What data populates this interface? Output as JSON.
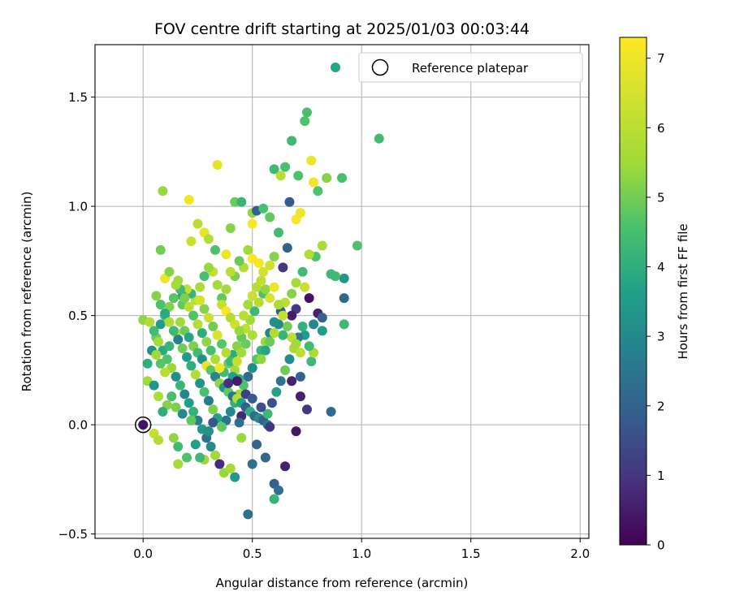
{
  "chart_data": {
    "type": "scatter",
    "title": "FOV centre drift starting at 2025/01/03 00:03:44",
    "xlabel": "Angular distance from reference (arcmin)",
    "ylabel": "Rotation from reference (arcmin)",
    "xlim": [
      -0.22,
      2.04
    ],
    "ylim": [
      -0.52,
      1.74
    ],
    "xticks": [
      0.0,
      0.5,
      1.0,
      1.5,
      2.0
    ],
    "xtick_labels": [
      "0.0",
      "0.5",
      "1.0",
      "1.5",
      "2.0"
    ],
    "yticks": [
      -0.5,
      0.0,
      0.5,
      1.0,
      1.5
    ],
    "ytick_labels": [
      "−0.5",
      "0.0",
      "0.5",
      "1.0",
      "1.5"
    ],
    "grid": true,
    "legend": {
      "placement": "top-right",
      "entries": [
        {
          "label": "",
          "marker": "filled-circle",
          "color": "#22a884"
        },
        {
          "label": "Reference platepar",
          "marker": "open-circle",
          "color": "#000000"
        }
      ]
    },
    "colorbar": {
      "label": "Hours from first FF file",
      "range": [
        0,
        7.3
      ],
      "ticks": [
        0,
        1,
        2,
        3,
        4,
        5,
        6,
        7
      ],
      "tick_labels": [
        "0",
        "1",
        "2",
        "3",
        "4",
        "5",
        "6",
        "7"
      ],
      "colormap": "viridis"
    },
    "reference_point": {
      "x": 0.0,
      "y": 0.0
    },
    "points": [
      [
        0.0,
        0.0,
        0.3
      ],
      [
        0.05,
        -0.04,
        6.2
      ],
      [
        0.07,
        -0.07,
        5.8
      ],
      [
        0.02,
        0.2,
        5.5
      ],
      [
        0.08,
        0.8,
        5.0
      ],
      [
        0.09,
        1.07,
        5.4
      ],
      [
        0.21,
        1.03,
        7.1
      ],
      [
        0.34,
        1.19,
        6.8
      ],
      [
        0.1,
        0.67,
        7.0
      ],
      [
        0.12,
        0.7,
        5.2
      ],
      [
        0.15,
        0.42,
        5.8
      ],
      [
        0.18,
        0.55,
        4.8
      ],
      [
        0.2,
        0.6,
        6.0
      ],
      [
        0.22,
        0.84,
        6.3
      ],
      [
        0.25,
        0.92,
        6.0
      ],
      [
        0.28,
        0.88,
        6.9
      ],
      [
        0.3,
        0.85,
        5.9
      ],
      [
        0.33,
        0.8,
        4.6
      ],
      [
        0.38,
        0.78,
        7.0
      ],
      [
        0.4,
        0.9,
        5.2
      ],
      [
        0.42,
        1.02,
        4.9
      ],
      [
        0.45,
        1.02,
        4.2
      ],
      [
        0.5,
        0.92,
        7.2
      ],
      [
        0.5,
        0.97,
        5.3
      ],
      [
        0.52,
        0.98,
        1.9
      ],
      [
        0.55,
        0.99,
        4.5
      ],
      [
        0.58,
        0.95,
        4.8
      ],
      [
        0.6,
        1.17,
        4.3
      ],
      [
        0.63,
        1.14,
        5.9
      ],
      [
        0.65,
        1.18,
        4.5
      ],
      [
        0.68,
        1.3,
        4.3
      ],
      [
        0.67,
        1.02,
        1.8
      ],
      [
        0.7,
        0.94,
        7.2
      ],
      [
        0.72,
        0.97,
        7.0
      ],
      [
        0.71,
        1.14,
        4.6
      ],
      [
        0.74,
        1.39,
        4.6
      ],
      [
        0.75,
        1.43,
        4.5
      ],
      [
        0.77,
        1.21,
        7.0
      ],
      [
        0.78,
        1.11,
        7.0
      ],
      [
        0.8,
        1.07,
        4.6
      ],
      [
        0.84,
        1.13,
        5.2
      ],
      [
        0.91,
        1.13,
        4.5
      ],
      [
        1.08,
        1.31,
        4.4
      ],
      [
        0.98,
        0.82,
        4.6
      ],
      [
        0.92,
        0.67,
        3.4
      ],
      [
        0.88,
        0.68,
        4.4
      ],
      [
        0.86,
        0.69,
        4.3
      ],
      [
        0.82,
        0.82,
        5.6
      ],
      [
        0.79,
        0.77,
        4.6
      ],
      [
        0.76,
        0.78,
        5.8
      ],
      [
        0.73,
        0.7,
        4.4
      ],
      [
        0.7,
        0.65,
        5.6
      ],
      [
        0.68,
        0.6,
        5.2
      ],
      [
        0.66,
        0.81,
        2.0
      ],
      [
        0.64,
        0.72,
        1.0
      ],
      [
        0.62,
        0.88,
        4.4
      ],
      [
        0.6,
        0.77,
        5.2
      ],
      [
        0.58,
        0.73,
        6.4
      ],
      [
        0.55,
        0.7,
        6.5
      ],
      [
        0.53,
        0.74,
        7.1
      ],
      [
        0.5,
        0.76,
        7.2
      ],
      [
        0.48,
        0.8,
        5.5
      ],
      [
        0.46,
        0.72,
        5.8
      ],
      [
        0.44,
        0.75,
        4.9
      ],
      [
        0.42,
        0.68,
        5.1
      ],
      [
        0.4,
        0.7,
        6.0
      ],
      [
        0.38,
        0.62,
        5.5
      ],
      [
        0.36,
        0.58,
        4.8
      ],
      [
        0.34,
        0.64,
        5.6
      ],
      [
        0.32,
        0.7,
        6.2
      ],
      [
        0.3,
        0.72,
        5.4
      ],
      [
        0.28,
        0.68,
        4.5
      ],
      [
        0.26,
        0.63,
        5.7
      ],
      [
        0.24,
        0.57,
        5.9
      ],
      [
        0.22,
        0.6,
        4.2
      ],
      [
        0.2,
        0.62,
        6.1
      ],
      [
        0.18,
        0.59,
        3.8
      ],
      [
        0.16,
        0.66,
        5.5
      ],
      [
        0.14,
        0.58,
        4.7
      ],
      [
        0.12,
        0.54,
        5.2
      ],
      [
        0.1,
        0.5,
        4.3
      ],
      [
        0.08,
        0.46,
        3.6
      ],
      [
        0.06,
        0.4,
        4.9
      ],
      [
        0.04,
        0.34,
        3.2
      ],
      [
        0.02,
        0.28,
        4.0
      ],
      [
        0.0,
        0.48,
        5.3
      ],
      [
        0.03,
        0.47,
        5.8
      ],
      [
        0.05,
        0.43,
        4.4
      ],
      [
        0.07,
        0.38,
        5.6
      ],
      [
        0.09,
        0.34,
        3.9
      ],
      [
        0.11,
        0.3,
        4.6
      ],
      [
        0.13,
        0.26,
        5.4
      ],
      [
        0.15,
        0.22,
        3.1
      ],
      [
        0.17,
        0.18,
        4.2
      ],
      [
        0.19,
        0.14,
        2.9
      ],
      [
        0.21,
        0.1,
        3.6
      ],
      [
        0.23,
        0.06,
        4.1
      ],
      [
        0.25,
        0.02,
        2.7
      ],
      [
        0.27,
        -0.02,
        3.4
      ],
      [
        0.29,
        -0.06,
        2.4
      ],
      [
        0.31,
        -0.1,
        3.0
      ],
      [
        0.33,
        -0.14,
        5.5
      ],
      [
        0.35,
        -0.18,
        0.8
      ],
      [
        0.37,
        -0.22,
        5.4
      ],
      [
        0.4,
        -0.2,
        5.6
      ],
      [
        0.42,
        -0.24,
        3.4
      ],
      [
        0.45,
        -0.06,
        5.4
      ],
      [
        0.48,
        -0.41,
        2.3
      ],
      [
        0.5,
        -0.18,
        2.3
      ],
      [
        0.52,
        -0.09,
        2.1
      ],
      [
        0.56,
        -0.15,
        2.1
      ],
      [
        0.6,
        -0.27,
        2.0
      ],
      [
        0.62,
        -0.3,
        2.3
      ],
      [
        0.6,
        -0.34,
        4.2
      ],
      [
        0.65,
        -0.19,
        0.6
      ],
      [
        0.7,
        -0.03,
        0.4
      ],
      [
        0.75,
        0.07,
        1.0
      ],
      [
        0.86,
        0.06,
        2.2
      ],
      [
        0.72,
        0.13,
        0.6
      ],
      [
        0.68,
        0.2,
        0.6
      ],
      [
        0.72,
        0.22,
        2.0
      ],
      [
        0.77,
        0.29,
        4.3
      ],
      [
        0.78,
        0.33,
        5.7
      ],
      [
        0.76,
        0.36,
        4.4
      ],
      [
        0.74,
        0.41,
        3.6
      ],
      [
        0.8,
        0.51,
        0.6
      ],
      [
        0.82,
        0.49,
        2.0
      ],
      [
        0.78,
        0.46,
        3.0
      ],
      [
        0.82,
        0.43,
        3.6
      ],
      [
        0.92,
        0.46,
        4.3
      ],
      [
        0.92,
        0.58,
        2.1
      ],
      [
        0.76,
        0.58,
        0.3
      ],
      [
        0.74,
        0.63,
        6.3
      ],
      [
        0.7,
        0.53,
        1.1
      ],
      [
        0.68,
        0.5,
        0.5
      ],
      [
        0.65,
        0.56,
        6.0
      ],
      [
        0.63,
        0.52,
        1.9
      ],
      [
        0.6,
        0.47,
        3.2
      ],
      [
        0.58,
        0.42,
        2.8
      ],
      [
        0.56,
        0.38,
        5.4
      ],
      [
        0.54,
        0.34,
        4.2
      ],
      [
        0.52,
        0.3,
        4.7
      ],
      [
        0.5,
        0.26,
        3.1
      ],
      [
        0.48,
        0.22,
        2.2
      ],
      [
        0.46,
        0.18,
        4.6
      ],
      [
        0.44,
        0.14,
        5.5
      ],
      [
        0.42,
        0.1,
        4.1
      ],
      [
        0.4,
        0.06,
        3.0
      ],
      [
        0.38,
        0.02,
        2.4
      ],
      [
        0.36,
        -0.01,
        4.8
      ],
      [
        0.34,
        0.03,
        3.7
      ],
      [
        0.32,
        0.07,
        5.1
      ],
      [
        0.3,
        0.11,
        2.6
      ],
      [
        0.28,
        0.15,
        4.5
      ],
      [
        0.26,
        0.19,
        3.3
      ],
      [
        0.24,
        0.23,
        5.8
      ],
      [
        0.22,
        0.27,
        4.0
      ],
      [
        0.2,
        0.31,
        3.5
      ],
      [
        0.18,
        0.35,
        5.0
      ],
      [
        0.16,
        0.39,
        2.8
      ],
      [
        0.14,
        0.43,
        4.3
      ],
      [
        0.12,
        0.47,
        5.7
      ],
      [
        0.1,
        0.51,
        3.9
      ],
      [
        0.08,
        0.55,
        4.6
      ],
      [
        0.06,
        0.59,
        5.2
      ],
      [
        0.17,
        0.47,
        5.5
      ],
      [
        0.19,
        0.43,
        4.9
      ],
      [
        0.21,
        0.4,
        3.8
      ],
      [
        0.23,
        0.36,
        5.1
      ],
      [
        0.25,
        0.33,
        4.4
      ],
      [
        0.27,
        0.3,
        3.2
      ],
      [
        0.29,
        0.27,
        6.9
      ],
      [
        0.31,
        0.25,
        4.7
      ],
      [
        0.33,
        0.22,
        2.9
      ],
      [
        0.35,
        0.19,
        5.3
      ],
      [
        0.37,
        0.17,
        3.4
      ],
      [
        0.39,
        0.15,
        4.8
      ],
      [
        0.41,
        0.13,
        2.5
      ],
      [
        0.43,
        0.12,
        5.9
      ],
      [
        0.45,
        0.1,
        3.6
      ],
      [
        0.47,
        0.08,
        1.9
      ],
      [
        0.49,
        0.06,
        4.0
      ],
      [
        0.51,
        0.04,
        2.2
      ],
      [
        0.53,
        0.03,
        3.0
      ],
      [
        0.55,
        0.02,
        2.0
      ],
      [
        0.57,
        0.05,
        4.3
      ],
      [
        0.59,
        0.1,
        1.6
      ],
      [
        0.61,
        0.15,
        3.7
      ],
      [
        0.63,
        0.2,
        2.4
      ],
      [
        0.65,
        0.25,
        4.9
      ],
      [
        0.67,
        0.3,
        3.1
      ],
      [
        0.69,
        0.35,
        5.6
      ],
      [
        0.71,
        0.4,
        2.7
      ],
      [
        0.73,
        0.45,
        4.1
      ],
      [
        0.55,
        0.6,
        4.6
      ],
      [
        0.53,
        0.56,
        5.9
      ],
      [
        0.51,
        0.52,
        4.3
      ],
      [
        0.49,
        0.48,
        5.5
      ],
      [
        0.47,
        0.44,
        6.1
      ],
      [
        0.45,
        0.4,
        4.8
      ],
      [
        0.43,
        0.36,
        5.2
      ],
      [
        0.41,
        0.32,
        3.9
      ],
      [
        0.39,
        0.28,
        5.0
      ],
      [
        0.37,
        0.24,
        4.4
      ],
      [
        0.35,
        0.26,
        7.1
      ],
      [
        0.33,
        0.3,
        5.7
      ],
      [
        0.31,
        0.34,
        4.5
      ],
      [
        0.29,
        0.38,
        5.3
      ],
      [
        0.27,
        0.42,
        4.0
      ],
      [
        0.25,
        0.46,
        5.9
      ],
      [
        0.23,
        0.5,
        4.6
      ],
      [
        0.21,
        0.54,
        6.0
      ],
      [
        0.19,
        0.58,
        5.1
      ],
      [
        0.17,
        0.62,
        4.4
      ],
      [
        0.15,
        0.64,
        5.6
      ],
      [
        0.36,
        0.55,
        6.2
      ],
      [
        0.38,
        0.52,
        7.2
      ],
      [
        0.4,
        0.49,
        5.8
      ],
      [
        0.42,
        0.46,
        6.4
      ],
      [
        0.44,
        0.43,
        5.4
      ],
      [
        0.46,
        0.5,
        6.0
      ],
      [
        0.48,
        0.55,
        5.6
      ],
      [
        0.5,
        0.59,
        6.3
      ],
      [
        0.52,
        0.63,
        5.9
      ],
      [
        0.54,
        0.66,
        6.1
      ],
      [
        0.56,
        0.62,
        5.3
      ],
      [
        0.58,
        0.58,
        6.6
      ],
      [
        0.6,
        0.63,
        7.0
      ],
      [
        0.62,
        0.55,
        5.7
      ],
      [
        0.64,
        0.5,
        6.2
      ],
      [
        0.66,
        0.45,
        5.0
      ],
      [
        0.68,
        0.4,
        6.1
      ],
      [
        0.7,
        0.37,
        5.5
      ],
      [
        0.72,
        0.33,
        6.0
      ],
      [
        0.64,
        0.41,
        4.2
      ],
      [
        0.62,
        0.46,
        3.1
      ],
      [
        0.6,
        0.42,
        5.8
      ],
      [
        0.58,
        0.38,
        4.9
      ],
      [
        0.56,
        0.34,
        3.8
      ],
      [
        0.54,
        0.3,
        5.3
      ],
      [
        0.26,
        0.57,
        6.5
      ],
      [
        0.28,
        0.53,
        5.2
      ],
      [
        0.3,
        0.49,
        6.3
      ],
      [
        0.32,
        0.45,
        5.0
      ],
      [
        0.34,
        0.41,
        6.6
      ],
      [
        0.36,
        0.37,
        4.7
      ],
      [
        0.38,
        0.33,
        5.9
      ],
      [
        0.4,
        0.29,
        4.3
      ],
      [
        0.42,
        0.25,
        5.6
      ],
      [
        0.44,
        0.21,
        4.0
      ],
      [
        0.13,
        0.13,
        4.5
      ],
      [
        0.11,
        0.09,
        5.2
      ],
      [
        0.09,
        0.06,
        4.0
      ],
      [
        0.07,
        0.13,
        5.7
      ],
      [
        0.05,
        0.18,
        3.3
      ],
      [
        0.14,
        -0.06,
        5.3
      ],
      [
        0.16,
        -0.1,
        4.4
      ],
      [
        0.2,
        -0.15,
        4.6
      ],
      [
        0.16,
        -0.18,
        5.6
      ],
      [
        0.28,
        -0.16,
        5.5
      ],
      [
        0.24,
        -0.09,
        3.6
      ],
      [
        0.26,
        -0.15,
        4.3
      ],
      [
        0.3,
        -0.03,
        3.2
      ],
      [
        0.22,
        0.02,
        4.8
      ],
      [
        0.18,
        0.05,
        3.0
      ],
      [
        0.15,
        0.08,
        5.1
      ],
      [
        0.1,
        0.24,
        5.9
      ],
      [
        0.08,
        0.28,
        4.7
      ],
      [
        0.06,
        0.32,
        5.5
      ],
      [
        0.12,
        0.36,
        4.2
      ],
      [
        0.5,
        0.41,
        5.7
      ],
      [
        0.47,
        0.37,
        4.9
      ],
      [
        0.45,
        0.33,
        5.5
      ],
      [
        0.43,
        0.29,
        6.2
      ],
      [
        0.41,
        0.22,
        3.7
      ],
      [
        0.39,
        0.19,
        0.9
      ],
      [
        0.43,
        0.2,
        0.5
      ],
      [
        0.47,
        0.14,
        1.2
      ],
      [
        0.5,
        0.12,
        1.8
      ],
      [
        0.54,
        0.08,
        1.6
      ],
      [
        0.57,
        0.0,
        2.6
      ],
      [
        0.58,
        -0.01,
        1.0
      ],
      [
        0.45,
        0.04,
        0.7
      ],
      [
        0.32,
        0.01,
        1.7
      ],
      [
        0.44,
        0.01,
        2.3
      ]
    ]
  }
}
